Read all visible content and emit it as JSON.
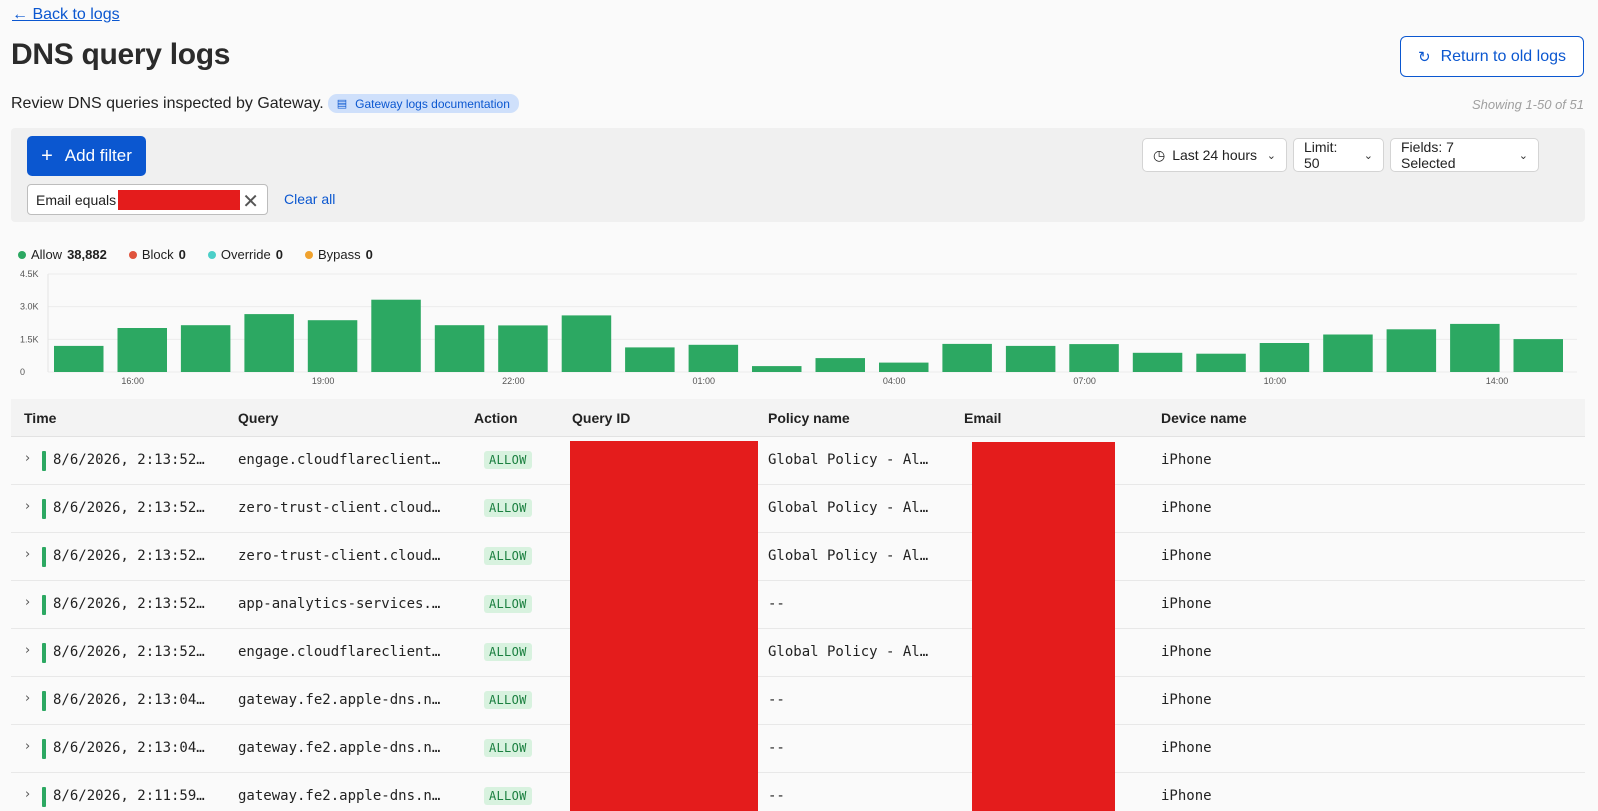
{
  "header": {
    "back_label": "← Back to logs",
    "title": "DNS query logs",
    "old_logs_label": "Return to old logs",
    "subtitle": "Review DNS queries inspected by Gateway.",
    "doc_link": "Gateway logs documentation",
    "showing": "Showing 1-50 of 51"
  },
  "filters": {
    "add_label": "Add filter",
    "chip_label": "Email equals",
    "clear_label": "Clear all",
    "time_range": "Last 24 hours",
    "limit": "Limit: 50",
    "fields": "Fields: 7 Selected"
  },
  "legend": [
    {
      "label": "Allow",
      "count": "38,882",
      "color": "#2ca862"
    },
    {
      "label": "Block",
      "count": "0",
      "color": "#e0533d"
    },
    {
      "label": "Override",
      "count": "0",
      "color": "#4ccfc8"
    },
    {
      "label": "Bypass",
      "count": "0",
      "color": "#f0a22e"
    }
  ],
  "chart_data": {
    "type": "bar",
    "title": "",
    "xlabel": "",
    "ylabel": "",
    "ylim": [
      0,
      4500
    ],
    "yticks": [
      0,
      1500,
      3000,
      4500
    ],
    "ytick_labels": [
      "0",
      "1.5K",
      "3.0K",
      "4.5K"
    ],
    "xtick_labels": [
      "16:00",
      "19:00",
      "22:00",
      "01:00",
      "04:00",
      "07:00",
      "10:00",
      "14:00"
    ],
    "xtick_bar_index": [
      1.25,
      4.25,
      7.25,
      10.25,
      13.25,
      16.25,
      19.25,
      22.75
    ],
    "color": "#2ca862",
    "values": [
      1200,
      2020,
      2150,
      2660,
      2380,
      3320,
      2150,
      2140,
      2600,
      1130,
      1250,
      270,
      640,
      430,
      1290,
      1200,
      1280,
      880,
      840,
      1330,
      1720,
      1960,
      2210,
      1510
    ]
  },
  "table": {
    "columns": [
      "Time",
      "Query",
      "Action",
      "Query ID",
      "Policy name",
      "Email",
      "Device name"
    ],
    "rows": [
      {
        "time": "8/6/2026, 2:13:52…",
        "query": "engage.cloudflareclient…",
        "action": "ALLOW",
        "policy": "Global Policy - Al…",
        "device": "iPhone"
      },
      {
        "time": "8/6/2026, 2:13:52…",
        "query": "zero-trust-client.cloud…",
        "action": "ALLOW",
        "policy": "Global Policy - Al…",
        "device": "iPhone"
      },
      {
        "time": "8/6/2026, 2:13:52…",
        "query": "zero-trust-client.cloud…",
        "action": "ALLOW",
        "policy": "Global Policy - Al…",
        "device": "iPhone"
      },
      {
        "time": "8/6/2026, 2:13:52…",
        "query": "app-analytics-services.…",
        "action": "ALLOW",
        "policy": "--",
        "device": "iPhone"
      },
      {
        "time": "8/6/2026, 2:13:52…",
        "query": "engage.cloudflareclient…",
        "action": "ALLOW",
        "policy": "Global Policy - Al…",
        "device": "iPhone"
      },
      {
        "time": "8/6/2026, 2:13:04…",
        "query": "gateway.fe2.apple-dns.n…",
        "action": "ALLOW",
        "policy": "--",
        "device": "iPhone"
      },
      {
        "time": "8/6/2026, 2:13:04…",
        "query": "gateway.fe2.apple-dns.n…",
        "action": "ALLOW",
        "policy": "--",
        "device": "iPhone"
      },
      {
        "time": "8/6/2026, 2:11:59…",
        "query": "gateway.fe2.apple-dns.n…",
        "action": "ALLOW",
        "policy": "--",
        "device": "iPhone"
      }
    ]
  }
}
